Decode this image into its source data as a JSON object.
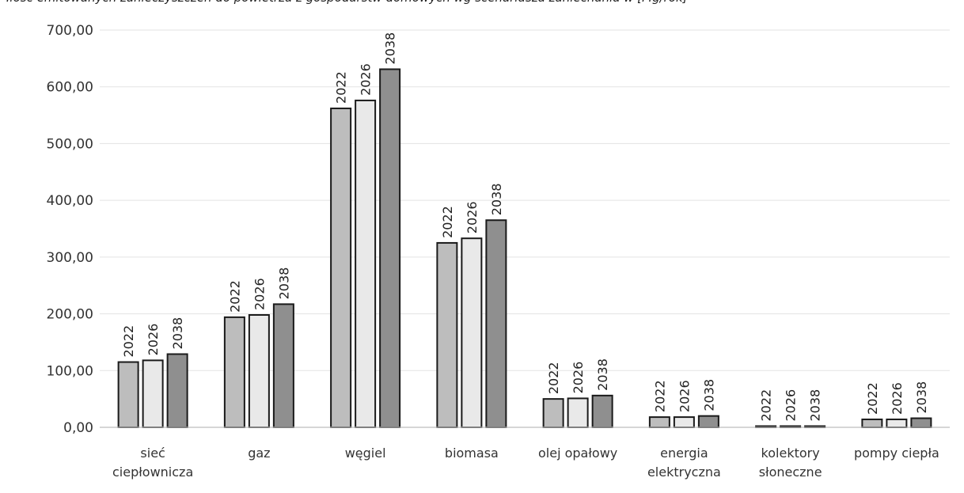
{
  "header": {
    "title": "Ilość emitowanych zanieczyszczeń do powietrza z gospodarstw domowych wg scenariusza zaniechania w [Mg/rok]"
  },
  "chart_data": {
    "type": "bar",
    "title": "",
    "xlabel": "",
    "ylabel": "",
    "ylim": [
      0,
      700
    ],
    "yticks": [
      "0,00",
      "100,00",
      "200,00",
      "300,00",
      "400,00",
      "500,00",
      "600,00",
      "700,00"
    ],
    "grid": true,
    "categories": [
      [
        "sieć",
        "ciepłownicza"
      ],
      [
        "gaz"
      ],
      [
        "węgiel"
      ],
      [
        "biomasa"
      ],
      [
        "olej opałowy"
      ],
      [
        "energia",
        "elektryczna"
      ],
      [
        "kolektory",
        "słoneczne"
      ],
      [
        "pompy ciepła"
      ]
    ],
    "series": [
      {
        "name": "2022",
        "color": "#bdbdbd",
        "values": [
          115,
          194,
          562,
          325,
          50,
          18,
          1,
          14
        ]
      },
      {
        "name": "2026",
        "color": "#e9e9e9",
        "values": [
          118,
          198,
          576,
          333,
          51,
          18,
          1,
          14
        ]
      },
      {
        "name": "2038",
        "color": "#8f8f8f",
        "values": [
          129,
          217,
          631,
          365,
          56,
          20,
          1,
          16
        ]
      }
    ]
  }
}
